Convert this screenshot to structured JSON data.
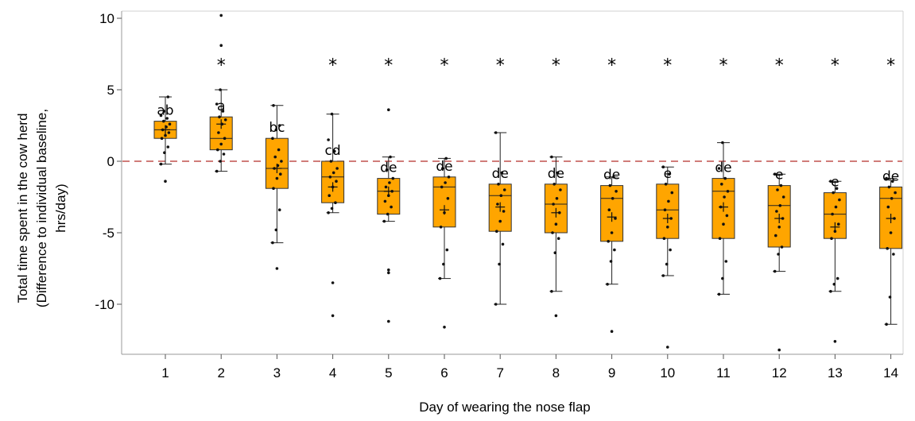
{
  "chart_data": {
    "type": "box",
    "title": "",
    "xlabel": "Day of wearing the nose flap",
    "ylabel_lines": [
      "Total time spent in the cow herd",
      "(Difference to individual baseline,",
      "hrs/day)"
    ],
    "ylim": [
      -13.5,
      10.5
    ],
    "yticks": [
      10,
      5,
      0,
      -5,
      -10
    ],
    "ytick_labels": [
      "10",
      "5",
      "0",
      "-5",
      "-10"
    ],
    "reference_line_y": 0,
    "colors": {
      "box_fill": "#FFA500",
      "box_stroke": "#333333",
      "reference_line": "#C0504D",
      "axis": "#999999"
    },
    "boxes": [
      {
        "day": "1",
        "q1": 1.6,
        "median": 2.2,
        "q3": 2.8,
        "mean": 2.2,
        "whisker_low": -0.2,
        "whisker_high": 4.5,
        "outliers": [
          -1.4
        ],
        "points": [
          -0.2,
          0.6,
          1.0,
          1.6,
          1.8,
          2.0,
          2.2,
          2.4,
          2.6,
          2.8,
          3.0,
          3.2,
          3.5,
          4.5
        ],
        "letter": "ab",
        "star": ""
      },
      {
        "day": "2",
        "q1": 0.8,
        "median": 1.6,
        "q3": 3.1,
        "mean": 2.6,
        "whisker_low": -0.7,
        "whisker_high": 5.0,
        "outliers": [
          10.2,
          8.1
        ],
        "points": [
          -0.7,
          0.0,
          0.5,
          0.8,
          1.2,
          1.6,
          2.0,
          2.6,
          2.9,
          3.1,
          3.5,
          4.0,
          5.0
        ],
        "letter": "a",
        "star": "*"
      },
      {
        "day": "3",
        "q1": -1.9,
        "median": -0.5,
        "q3": 1.6,
        "mean": -0.5,
        "whisker_low": -5.7,
        "whisker_high": 3.9,
        "outliers": [
          -7.5
        ],
        "points": [
          -5.7,
          -4.8,
          -3.4,
          -1.9,
          -1.2,
          -0.9,
          -0.5,
          -0.3,
          0.0,
          0.3,
          0.8,
          1.6,
          2.2,
          2.5,
          3.9
        ],
        "letter": "bc",
        "star": ""
      },
      {
        "day": "4",
        "q1": -2.9,
        "median": -1.1,
        "q3": 0.0,
        "mean": -1.8,
        "whisker_low": -3.6,
        "whisker_high": 3.3,
        "outliers": [
          -8.5,
          -10.8
        ],
        "points": [
          -3.6,
          -3.3,
          -2.9,
          -2.4,
          -1.8,
          -1.4,
          -1.1,
          -0.8,
          -0.5,
          0.0,
          0.7,
          1.5,
          3.3
        ],
        "letter": "cd",
        "star": "*"
      },
      {
        "day": "5",
        "q1": -3.7,
        "median": -2.1,
        "q3": -1.2,
        "mean": -2.1,
        "whisker_low": -4.2,
        "whisker_high": 0.3,
        "outliers": [
          3.6,
          -7.6,
          -7.8,
          -11.2
        ],
        "points": [
          -4.2,
          -3.7,
          -3.2,
          -2.8,
          -2.4,
          -2.1,
          -1.8,
          -1.5,
          -1.2,
          -0.6,
          0.3
        ],
        "letter": "de",
        "star": "*"
      },
      {
        "day": "6",
        "q1": -4.6,
        "median": -1.8,
        "q3": -1.1,
        "mean": -3.4,
        "whisker_low": -8.2,
        "whisker_high": 0.2,
        "outliers": [
          -11.6
        ],
        "points": [
          -8.2,
          -7.2,
          -6.2,
          -4.6,
          -3.6,
          -2.6,
          -1.8,
          -1.5,
          -1.1,
          -0.5,
          0.2
        ],
        "letter": "de",
        "star": "*"
      },
      {
        "day": "7",
        "q1": -4.9,
        "median": -2.4,
        "q3": -1.6,
        "mean": -3.2,
        "whisker_low": -10.0,
        "whisker_high": 2.0,
        "outliers": [],
        "points": [
          -10.0,
          -7.2,
          -5.8,
          -4.9,
          -4.2,
          -3.5,
          -3.0,
          -2.4,
          -2.0,
          -1.6,
          -0.8,
          2.0
        ],
        "letter": "de",
        "star": "*"
      },
      {
        "day": "8",
        "q1": -5.0,
        "median": -3.0,
        "q3": -1.6,
        "mean": -3.6,
        "whisker_low": -9.1,
        "whisker_high": 0.3,
        "outliers": [
          -10.8
        ],
        "points": [
          -9.1,
          -6.4,
          -5.4,
          -5.0,
          -4.4,
          -3.6,
          -3.0,
          -2.6,
          -2.0,
          -1.6,
          -0.8,
          0.3
        ],
        "letter": "de",
        "star": "*"
      },
      {
        "day": "9",
        "q1": -5.6,
        "median": -2.6,
        "q3": -1.7,
        "mean": -3.9,
        "whisker_low": -8.6,
        "whisker_high": -1.1,
        "outliers": [
          -11.9
        ],
        "points": [
          -8.6,
          -7.0,
          -6.2,
          -5.6,
          -5.0,
          -4.0,
          -3.4,
          -2.6,
          -2.1,
          -1.7,
          -1.1
        ],
        "letter": "de",
        "star": "*"
      },
      {
        "day": "10",
        "q1": -5.4,
        "median": -3.4,
        "q3": -1.6,
        "mean": -4.0,
        "whisker_low": -8.0,
        "whisker_high": -0.4,
        "outliers": [
          -13.0
        ],
        "points": [
          -8.0,
          -7.2,
          -6.2,
          -5.4,
          -4.6,
          -4.0,
          -3.4,
          -2.8,
          -2.2,
          -1.6,
          -0.9,
          -0.4
        ],
        "letter": "e",
        "star": "*"
      },
      {
        "day": "11",
        "q1": -5.4,
        "median": -2.1,
        "q3": -1.2,
        "mean": -3.2,
        "whisker_low": -9.3,
        "whisker_high": 1.3,
        "outliers": [],
        "points": [
          -9.3,
          -8.2,
          -7.0,
          -5.4,
          -4.4,
          -3.8,
          -3.2,
          -2.5,
          -2.1,
          -1.6,
          -1.2,
          -0.5,
          1.3
        ],
        "letter": "de",
        "star": "*"
      },
      {
        "day": "12",
        "q1": -6.0,
        "median": -3.1,
        "q3": -1.7,
        "mean": -4.0,
        "whisker_low": -7.7,
        "whisker_high": -0.9,
        "outliers": [
          -13.2
        ],
        "points": [
          -7.7,
          -6.5,
          -6.0,
          -5.2,
          -4.6,
          -4.0,
          -3.5,
          -3.1,
          -2.5,
          -2.0,
          -1.7,
          -0.9
        ],
        "letter": "e",
        "star": "*"
      },
      {
        "day": "13",
        "q1": -5.4,
        "median": -3.7,
        "q3": -2.2,
        "mean": -4.6,
        "whisker_low": -9.1,
        "whisker_high": -1.4,
        "outliers": [
          -12.6
        ],
        "points": [
          -9.1,
          -8.6,
          -8.2,
          -5.4,
          -4.9,
          -4.4,
          -3.7,
          -3.2,
          -2.7,
          -2.2,
          -1.9,
          -1.4
        ],
        "letter": "e",
        "star": "*"
      },
      {
        "day": "14",
        "q1": -6.1,
        "median": -2.6,
        "q3": -1.8,
        "mean": -4.0,
        "whisker_low": -11.4,
        "whisker_high": -1.2,
        "outliers": [],
        "points": [
          -11.4,
          -9.5,
          -6.5,
          -6.1,
          -5.0,
          -4.0,
          -3.2,
          -2.6,
          -2.2,
          -1.8,
          -1.4,
          -1.2
        ],
        "letter": "de",
        "star": "*"
      }
    ]
  }
}
